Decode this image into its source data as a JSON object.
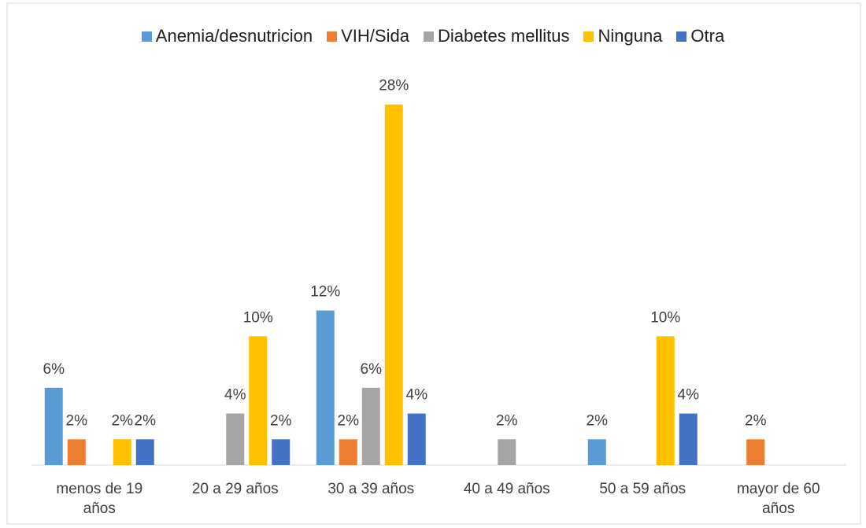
{
  "chart_data": {
    "type": "bar",
    "categories": [
      "menos de 19 años",
      "20 a 29 años",
      "30 a 39 años",
      "40 a 49 años",
      "50 a 59 años",
      "mayor de  60 años"
    ],
    "series": [
      {
        "name": "Anemia/desnutricion",
        "color": "#5b9bd5",
        "values": [
          6,
          null,
          12,
          null,
          2,
          null
        ],
        "value_labels": [
          "6%",
          null,
          "12%",
          null,
          "2%",
          null
        ]
      },
      {
        "name": "VIH/Sida",
        "color": "#ed7d31",
        "values": [
          2,
          null,
          2,
          null,
          null,
          2
        ],
        "value_labels": [
          "2%",
          null,
          "2%",
          null,
          null,
          "2%"
        ]
      },
      {
        "name": "Diabetes mellitus",
        "color": "#a5a5a5",
        "values": [
          null,
          4,
          6,
          2,
          null,
          null
        ],
        "value_labels": [
          null,
          "4%",
          "6%",
          "2%",
          null,
          null
        ]
      },
      {
        "name": "Ninguna",
        "color": "#ffc000",
        "values": [
          2,
          10,
          28,
          0,
          10,
          null
        ],
        "value_labels": [
          "2%",
          "10%",
          "28%",
          null,
          "10%",
          null
        ]
      },
      {
        "name": "Otra",
        "color": "#4472c4",
        "values": [
          2,
          2,
          4,
          null,
          4,
          null
        ],
        "value_labels": [
          "2%",
          "2%",
          "4%",
          null,
          "4%",
          null
        ]
      }
    ],
    "ylim": [
      0,
      30
    ],
    "legend": "top"
  }
}
